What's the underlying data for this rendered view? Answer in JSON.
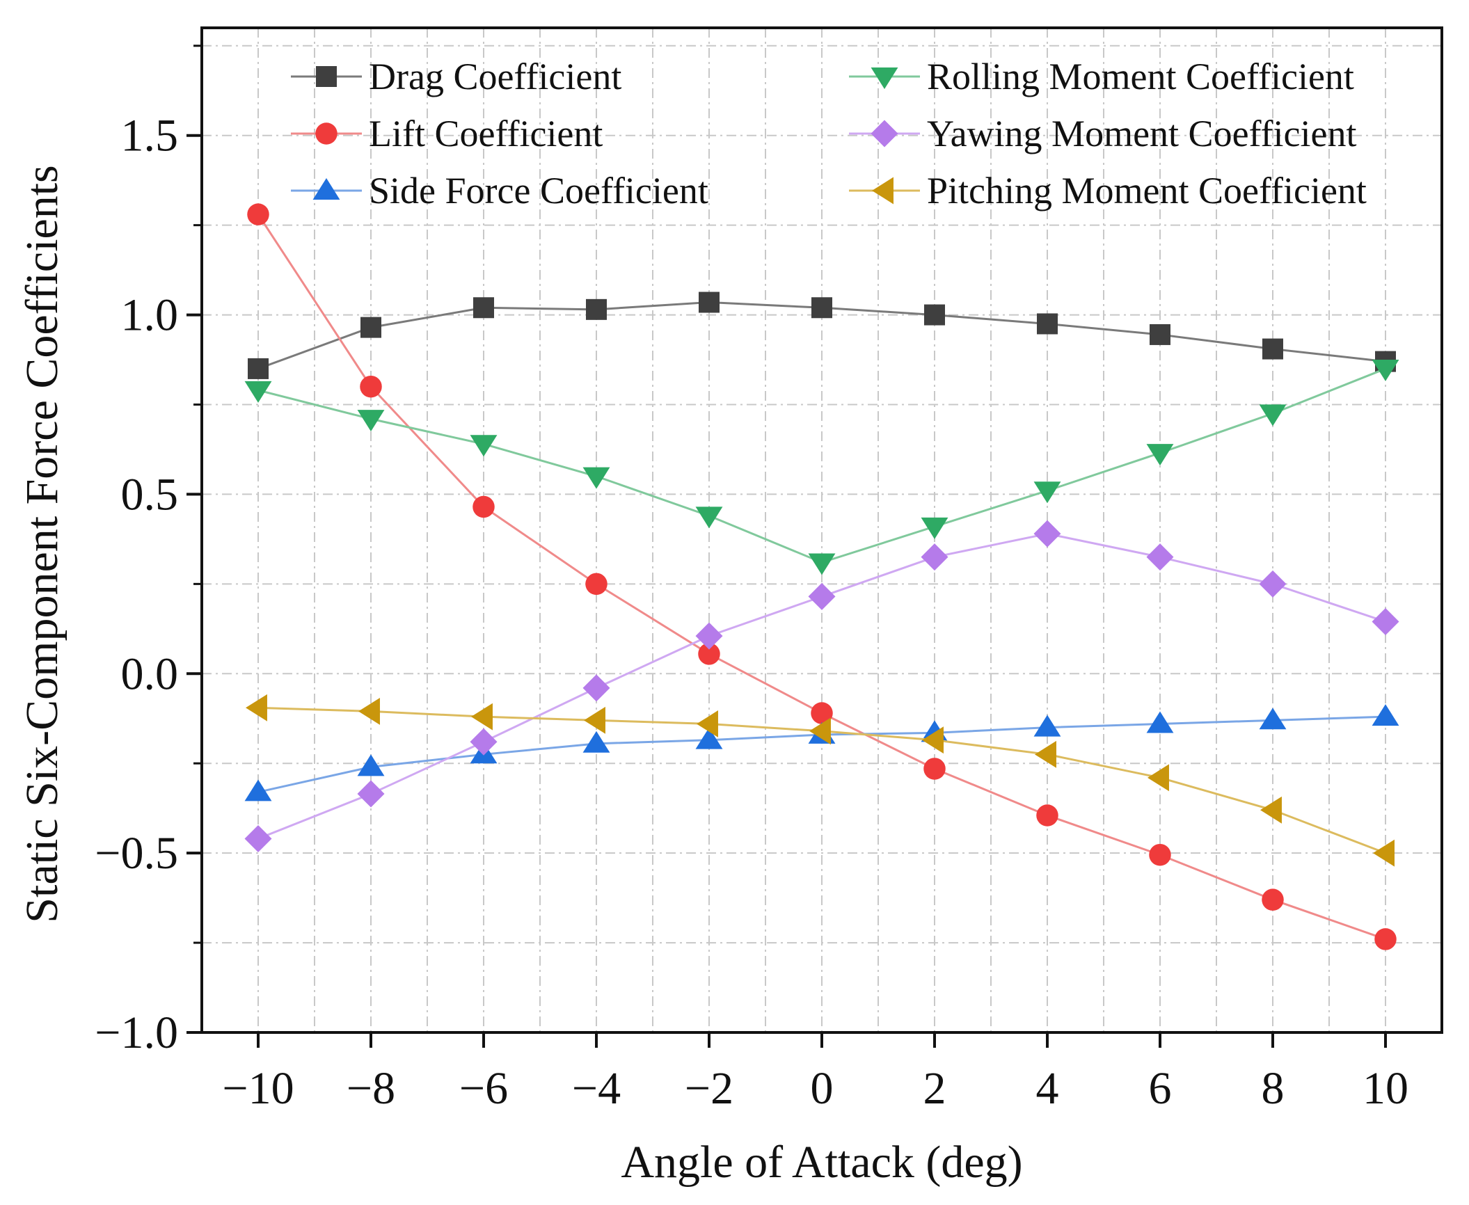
{
  "chart_data": {
    "type": "line",
    "title": "",
    "xlabel": "Angle of Attack (deg)",
    "ylabel": "Static Six-Component Force Coefficients",
    "x": [
      -10,
      -8,
      -6,
      -4,
      -2,
      0,
      2,
      4,
      6,
      8,
      10
    ],
    "xlim": [
      -11,
      11
    ],
    "ylim": [
      -1.0,
      1.8
    ],
    "xticks": [
      -10,
      -8,
      -6,
      -4,
      -2,
      0,
      2,
      4,
      6,
      8,
      10
    ],
    "xtick_labels": [
      "−10",
      "−8",
      "−6",
      "−4",
      "−2",
      "0",
      "2",
      "4",
      "6",
      "8",
      "10"
    ],
    "yticks": [
      -1.0,
      -0.5,
      0.0,
      0.5,
      1.0,
      1.5
    ],
    "ytick_labels": [
      "−1.0",
      "−0.5",
      "0.0",
      "0.5",
      "1.0",
      "1.5"
    ],
    "grid": true,
    "legend_position": "top",
    "series": [
      {
        "name": "Drag Coefficient",
        "marker": "square",
        "color": "#3f3f3f",
        "line_color": "#7a7a7a",
        "values": [
          0.85,
          0.965,
          1.02,
          1.015,
          1.035,
          1.02,
          1.0,
          0.975,
          0.945,
          0.905,
          0.87
        ]
      },
      {
        "name": "Lift Coefficient",
        "marker": "circle",
        "color": "#ef3b3b",
        "line_color": "#f08a8a",
        "values": [
          1.28,
          0.8,
          0.465,
          0.25,
          0.055,
          -0.11,
          -0.265,
          -0.395,
          -0.505,
          -0.63,
          -0.74
        ]
      },
      {
        "name": "Side Force Coefficient",
        "marker": "triangle-up",
        "color": "#1f6fdd",
        "line_color": "#7aa6e6",
        "values": [
          -0.33,
          -0.26,
          -0.225,
          -0.195,
          -0.185,
          -0.17,
          -0.165,
          -0.15,
          -0.14,
          -0.13,
          -0.12
        ]
      },
      {
        "name": "Rolling Moment Coefficient",
        "marker": "triangle-down",
        "color": "#2eaa64",
        "line_color": "#80c99c",
        "values": [
          0.79,
          0.71,
          0.64,
          0.55,
          0.44,
          0.31,
          0.41,
          0.51,
          0.615,
          0.725,
          0.85
        ]
      },
      {
        "name": "Yawing Moment Coefficient",
        "marker": "diamond",
        "color": "#b57bea",
        "line_color": "#cfa8f2",
        "values": [
          -0.46,
          -0.335,
          -0.19,
          -0.04,
          0.105,
          0.215,
          0.325,
          0.39,
          0.325,
          0.25,
          0.145
        ]
      },
      {
        "name": "Pitching Moment Coefficient",
        "marker": "triangle-left",
        "color": "#c9960c",
        "line_color": "#dcbb5e",
        "values": [
          -0.095,
          -0.105,
          -0.12,
          -0.13,
          -0.14,
          -0.16,
          -0.185,
          -0.225,
          -0.29,
          -0.38,
          -0.5
        ]
      }
    ]
  }
}
